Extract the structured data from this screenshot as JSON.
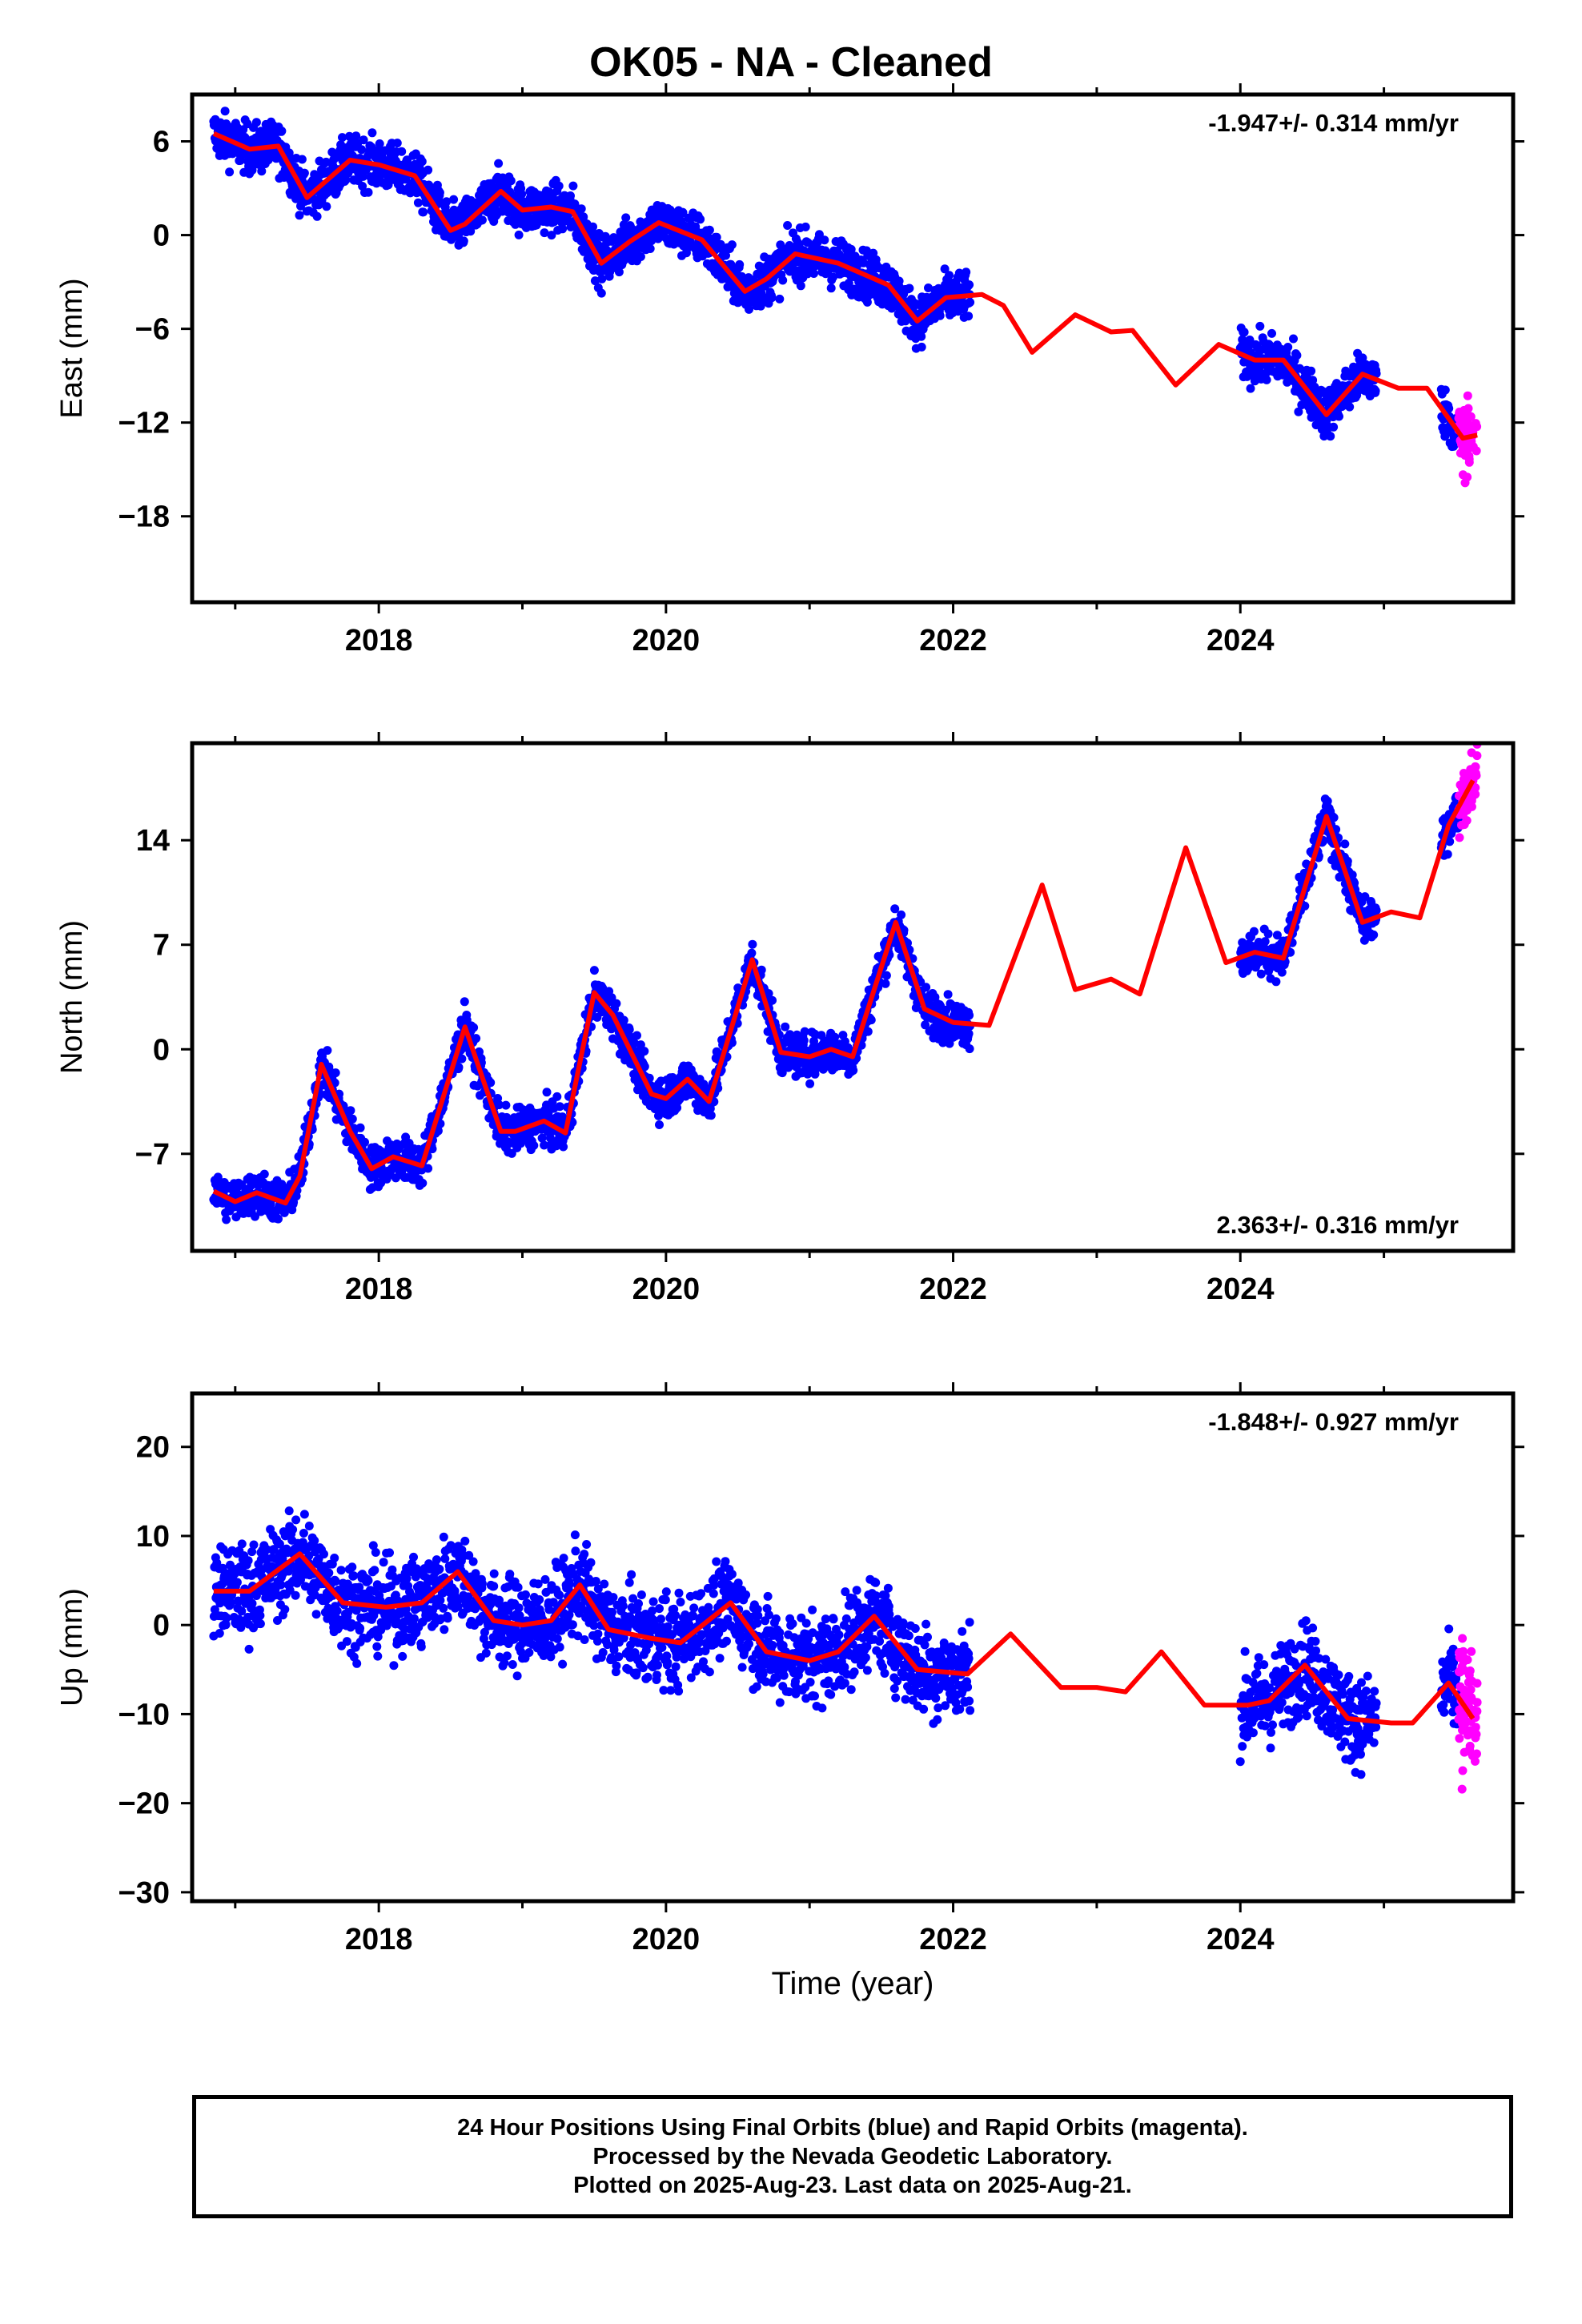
{
  "title": "OK05  - NA - Cleaned",
  "xlabel": "Time (year)",
  "footer": [
    "24 Hour Positions Using Final Orbits (blue) and Rapid Orbits (magenta).",
    "Processed by the Nevada Geodetic Laboratory.",
    "Plotted on 2025-Aug-23. Last data on 2025-Aug-21."
  ],
  "colors": {
    "final": "#0000ff",
    "rapid": "#ff00ff",
    "model": "#ff0000",
    "axis": "#000000"
  },
  "chart_data": [
    {
      "type": "scatter",
      "ylabel": "East (mm)",
      "annotation": "-1.947+/- 0.314 mm/yr",
      "annotation_position": "top-right",
      "xlim": [
        2016.7,
        2025.9
      ],
      "ylim": [
        -23.5,
        9
      ],
      "x_ticks": [
        2018,
        2020,
        2022,
        2024
      ],
      "y_ticks": [
        -18,
        -12,
        -6,
        0,
        6
      ],
      "segments": [
        [
          2016.85,
          2022.12
        ],
        [
          2024.0,
          2024.95
        ],
        [
          2025.4,
          2025.62
        ]
      ],
      "rapid_range": [
        2025.52,
        2025.65
      ],
      "model": {
        "name": "Model fit",
        "x": [
          2016.85,
          2017.1,
          2017.3,
          2017.5,
          2017.8,
          2018.0,
          2018.25,
          2018.5,
          2018.6,
          2018.85,
          2019.0,
          2019.2,
          2019.35,
          2019.55,
          2019.75,
          2019.95,
          2020.25,
          2020.55,
          2020.7,
          2020.9,
          2021.2,
          2021.4,
          2021.55,
          2021.75,
          2021.95,
          2022.2,
          2022.35,
          2022.55,
          2022.85,
          2023.1,
          2023.25,
          2023.55,
          2023.85,
          2024.1,
          2024.3,
          2024.6,
          2024.85,
          2025.1,
          2025.3,
          2025.55,
          2025.65
        ],
        "y": [
          6.5,
          5.5,
          5.7,
          2.4,
          4.8,
          4.5,
          3.8,
          0.3,
          0.7,
          2.8,
          1.6,
          1.8,
          1.5,
          -1.8,
          -0.4,
          0.8,
          -0.3,
          -3.6,
          -2.8,
          -1.2,
          -1.8,
          -2.6,
          -3.2,
          -5.5,
          -4.0,
          -3.8,
          -4.5,
          -7.5,
          -5.1,
          -6.2,
          -6.1,
          -9.6,
          -7.0,
          -8.0,
          -8.0,
          -11.5,
          -8.9,
          -9.8,
          -9.8,
          -13.0,
          -12.8
        ]
      }
    },
    {
      "type": "scatter",
      "ylabel": "North (mm)",
      "annotation": "2.363+/- 0.316 mm/yr",
      "annotation_position": "bottom-right",
      "xlim": [
        2016.7,
        2025.9
      ],
      "ylim": [
        -13.5,
        20.5
      ],
      "x_ticks": [
        2018,
        2020,
        2022,
        2024
      ],
      "y_ticks": [
        -7,
        0,
        7,
        14
      ],
      "segments": [
        [
          2016.85,
          2022.12
        ],
        [
          2024.0,
          2024.95
        ],
        [
          2025.4,
          2025.62
        ]
      ],
      "rapid_range": [
        2025.52,
        2025.65
      ],
      "model": {
        "name": "Model fit",
        "x": [
          2016.85,
          2017.0,
          2017.15,
          2017.35,
          2017.45,
          2017.6,
          2017.8,
          2017.95,
          2018.1,
          2018.3,
          2018.6,
          2018.85,
          2018.95,
          2019.15,
          2019.3,
          2019.5,
          2019.63,
          2019.9,
          2020.0,
          2020.15,
          2020.3,
          2020.6,
          2020.8,
          2021.0,
          2021.15,
          2021.3,
          2021.6,
          2021.8,
          2022.0,
          2022.25,
          2022.62,
          2022.85,
          2023.1,
          2023.3,
          2023.62,
          2023.9,
          2024.1,
          2024.3,
          2024.6,
          2024.85,
          2025.05,
          2025.25,
          2025.45,
          2025.62
        ],
        "y": [
          -9.5,
          -10.2,
          -9.6,
          -10.3,
          -8.5,
          -1.0,
          -5.5,
          -8.0,
          -7.2,
          -7.8,
          1.5,
          -5.5,
          -5.5,
          -4.8,
          -5.6,
          3.8,
          2.3,
          -3.0,
          -3.3,
          -2.0,
          -3.5,
          6.0,
          -0.2,
          -0.5,
          0.0,
          -0.5,
          8.5,
          2.7,
          1.8,
          1.6,
          11.0,
          4.0,
          4.7,
          3.7,
          13.5,
          5.8,
          6.5,
          6.1,
          15.6,
          8.5,
          9.2,
          8.8,
          15.0,
          18.0
        ]
      }
    },
    {
      "type": "scatter",
      "ylabel": "Up (mm)",
      "annotation": "-1.848+/- 0.927 mm/yr",
      "annotation_position": "top-right",
      "xlim": [
        2016.7,
        2025.9
      ],
      "ylim": [
        -31,
        26
      ],
      "x_ticks": [
        2018,
        2020,
        2022,
        2024
      ],
      "y_ticks": [
        -30,
        -20,
        -10,
        0,
        10,
        20
      ],
      "segments": [
        [
          2016.85,
          2022.12
        ],
        [
          2024.0,
          2024.95
        ],
        [
          2025.4,
          2025.62
        ]
      ],
      "rapid_range": [
        2025.52,
        2025.65
      ],
      "model": {
        "name": "Model fit",
        "x": [
          2016.85,
          2017.1,
          2017.45,
          2017.75,
          2018.05,
          2018.3,
          2018.55,
          2018.8,
          2019.0,
          2019.2,
          2019.4,
          2019.6,
          2019.9,
          2020.1,
          2020.45,
          2020.7,
          2021.0,
          2021.2,
          2021.45,
          2021.75,
          2022.1,
          2022.4,
          2022.75,
          2023.0,
          2023.2,
          2023.45,
          2023.75,
          2024.05,
          2024.2,
          2024.45,
          2024.75,
          2025.05,
          2025.2,
          2025.45,
          2025.62
        ],
        "y": [
          3.8,
          3.8,
          8.0,
          2.5,
          2.0,
          2.5,
          6.0,
          0.5,
          0.0,
          0.5,
          4.5,
          -0.5,
          -1.5,
          -2.0,
          2.5,
          -3.0,
          -4.0,
          -3.0,
          1.0,
          -5.0,
          -5.5,
          -1.0,
          -7.0,
          -7.0,
          -7.5,
          -3.0,
          -9.0,
          -9.0,
          -8.5,
          -4.5,
          -10.5,
          -11.0,
          -11.0,
          -6.5,
          -10.5
        ]
      }
    }
  ]
}
